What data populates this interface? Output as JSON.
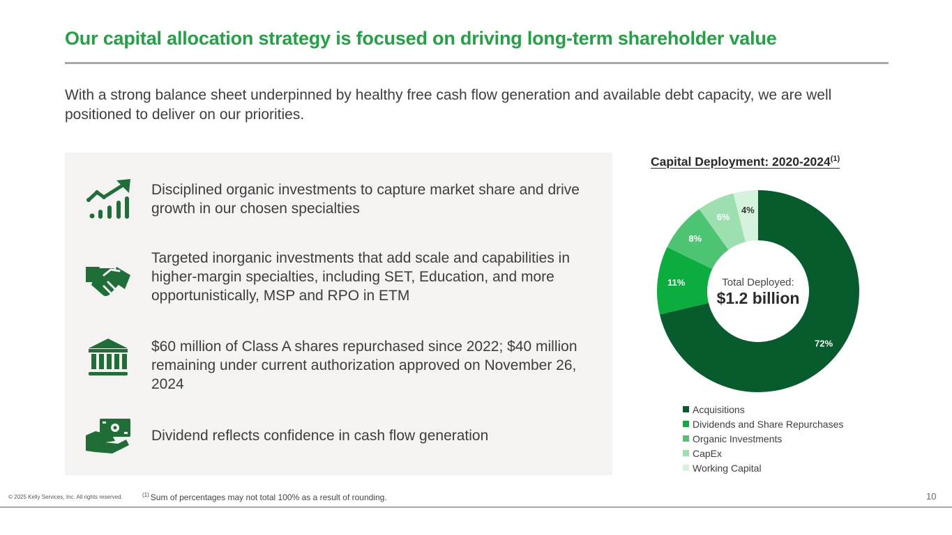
{
  "title": "Our capital allocation strategy is focused on driving long-term shareholder value",
  "intro": "With a strong balance sheet underpinned by healthy free cash flow generation and available debt capacity, we are well positioned to deliver on our priorities.",
  "items": [
    {
      "icon": "growth-chart-icon",
      "text": "Disciplined organic investments to capture market share and drive growth in our chosen specialties"
    },
    {
      "icon": "handshake-icon",
      "text": "Targeted inorganic investments that add scale and capabilities in higher-margin specialties, including SET, Education, and more opportunistically, MSP and RPO in ETM"
    },
    {
      "icon": "bank-icon",
      "text": "$60 million of Class A shares repurchased since 2022; $40 million remaining under current authorization approved on November 26, 2024"
    },
    {
      "icon": "cash-in-hand-icon",
      "text": "Dividend reflects confidence in cash flow generation"
    }
  ],
  "chart_data": {
    "type": "pie",
    "title": "Capital Deployment: 2020-2024",
    "title_footnote": "(1)",
    "center_label": "Total Deployed:",
    "center_value": "$1.2 billion",
    "categories": [
      "Acquisitions",
      "Dividends and Share Repurchases",
      "Organic Investments",
      "CapEx",
      "Working Capital"
    ],
    "values": [
      72,
      11,
      8,
      6,
      4
    ],
    "labels": [
      "72%",
      "11%",
      "8%",
      "6%",
      "4%"
    ],
    "colors": [
      "#065c2c",
      "#0cad3f",
      "#4dc472",
      "#9ddfaf",
      "#d4f2dc"
    ],
    "label_colors": [
      "#ffffff",
      "#ffffff",
      "#ffffff",
      "#ffffff",
      "#333333"
    ],
    "legend_position": "bottom"
  },
  "footer": {
    "copyright": "© 2025 Kelly Services, Inc. All rights reserved.",
    "footnote_marker": "(1)",
    "footnote_text": "Sum of percentages may not total 100% as a result of rounding.",
    "page_number": "10"
  },
  "colors": {
    "accent_green": "#21a243",
    "icon_green": "#1f6e38",
    "panel_background": "#f4f3f1",
    "rule_gray": "#a8a8a8"
  }
}
